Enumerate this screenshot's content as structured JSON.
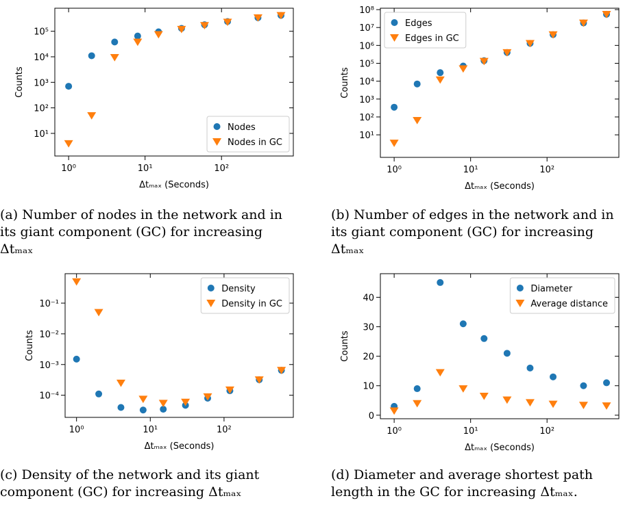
{
  "chart_data": [
    {
      "type": "scatter",
      "ylabel": "Counts",
      "xlabel": "Δtₘₐₓ (Seconds)",
      "xscale": "log",
      "yscale": "log",
      "x": [
        1,
        2,
        4,
        8,
        15,
        30,
        60,
        120,
        300,
        600
      ],
      "series": [
        {
          "name": "Nodes",
          "color": "#1f77b4",
          "marker": "o",
          "values": [
            700,
            11000,
            38000,
            65000,
            95000,
            130000,
            180000,
            240000,
            340000,
            420000
          ]
        },
        {
          "name": "Nodes in GC",
          "color": "#ff7f0e",
          "marker": "v",
          "values": [
            4,
            50,
            9500,
            38000,
            75000,
            120000,
            170000,
            230000,
            340000,
            420000
          ]
        }
      ],
      "xlim": [
        0.66,
        870
      ],
      "xticks": [
        {
          "value": 1,
          "label": "10⁰"
        },
        {
          "value": 10,
          "label": "10¹"
        },
        {
          "value": 100,
          "label": "10²"
        }
      ],
      "ylim": [
        1.3,
        800000
      ],
      "yticks": [
        {
          "value": 10,
          "label": "10¹"
        },
        {
          "value": 100,
          "label": "10²"
        },
        {
          "value": 1000,
          "label": "10³"
        },
        {
          "value": 10000,
          "label": "10⁴"
        },
        {
          "value": 100000,
          "label": "10⁵"
        }
      ],
      "legend": "lower right",
      "caption": [
        "(a) Number of nodes in the network and in",
        "its giant component (GC) for increasing",
        "Δtₘₐₓ"
      ]
    },
    {
      "type": "scatter",
      "ylabel": "Counts",
      "xlabel": "Δtₘₐₓ (Seconds)",
      "xscale": "log",
      "yscale": "log",
      "x": [
        1,
        2,
        4,
        8,
        15,
        30,
        60,
        120,
        300,
        600
      ],
      "series": [
        {
          "name": "Edges",
          "color": "#1f77b4",
          "marker": "o",
          "values": [
            350,
            7000,
            30000,
            70000,
            140000,
            400000,
            1300000,
            4000000,
            18000000,
            55000000
          ]
        },
        {
          "name": "Edges in GC",
          "color": "#ff7f0e",
          "marker": "v",
          "values": [
            3.5,
            65,
            12000,
            50000,
            130000,
            400000,
            1300000,
            4000000,
            18000000,
            55000000
          ]
        }
      ],
      "xlim": [
        0.66,
        870
      ],
      "xticks": [
        {
          "value": 1,
          "label": "10⁰"
        },
        {
          "value": 10,
          "label": "10¹"
        },
        {
          "value": 100,
          "label": "10²"
        }
      ],
      "ylim": [
        0.55,
        120000000
      ],
      "yticks": [
        {
          "value": 10,
          "label": "10¹"
        },
        {
          "value": 100,
          "label": "10²"
        },
        {
          "value": 1000,
          "label": "10³"
        },
        {
          "value": 10000,
          "label": "10⁴"
        },
        {
          "value": 100000,
          "label": "10⁵"
        },
        {
          "value": 1000000,
          "label": "10⁶"
        },
        {
          "value": 10000000,
          "label": "10⁷"
        },
        {
          "value": 100000000,
          "label": "10⁸"
        }
      ],
      "legend": "upper left",
      "caption": [
        "(b) Number of edges in the network and in",
        "its giant component (GC) for increasing",
        "Δtₘₐₓ"
      ]
    },
    {
      "type": "scatter",
      "ylabel": "Counts",
      "xlabel": "Δtₘₐₓ (Seconds)",
      "xscale": "log",
      "yscale": "log",
      "x": [
        1,
        2,
        4,
        8,
        15,
        30,
        60,
        120,
        300,
        600
      ],
      "series": [
        {
          "name": "Density",
          "color": "#1f77b4",
          "marker": "o",
          "values": [
            0.0015,
            0.00011,
            4e-05,
            3.3e-05,
            3.5e-05,
            4.7e-05,
            8e-05,
            0.00014,
            0.00032,
            0.00065
          ]
        },
        {
          "name": "Density in GC",
          "color": "#ff7f0e",
          "marker": "v",
          "values": [
            0.5,
            0.05,
            0.00025,
            7.5e-05,
            5.5e-05,
            6e-05,
            9e-05,
            0.00015,
            0.00032,
            0.00065
          ]
        }
      ],
      "xlim": [
        0.7,
        870
      ],
      "xticks": [
        {
          "value": 1,
          "label": "10⁰"
        },
        {
          "value": 10,
          "label": "10¹"
        },
        {
          "value": 100,
          "label": "10²"
        }
      ],
      "ylim": [
        1.9e-05,
        0.91
      ],
      "yticks": [
        {
          "value": 0.0001,
          "label": "10⁻⁴"
        },
        {
          "value": 0.001,
          "label": "10⁻³"
        },
        {
          "value": 0.01,
          "label": "10⁻²"
        },
        {
          "value": 0.1,
          "label": "10⁻¹"
        }
      ],
      "legend": "upper right",
      "caption": [
        "(c) Density of the network and its giant",
        "component (GC) for increasing Δtₘₐₓ"
      ]
    },
    {
      "type": "scatter",
      "ylabel": "Counts",
      "xlabel": "Δtₘₐₓ (Seconds)",
      "xscale": "log",
      "yscale": "linear",
      "x": [
        1,
        2,
        4,
        8,
        15,
        30,
        60,
        120,
        300,
        600
      ],
      "series": [
        {
          "name": "Diameter",
          "color": "#1f77b4",
          "marker": "o",
          "values": [
            3,
            9,
            45,
            31,
            26,
            21,
            16,
            13,
            10,
            11
          ]
        },
        {
          "name": "Average distance",
          "color": "#ff7f0e",
          "marker": "v",
          "values": [
            1.5,
            4,
            14.5,
            9,
            6.5,
            5.2,
            4.3,
            3.8,
            3.4,
            3.2
          ]
        }
      ],
      "xlim": [
        0.66,
        870
      ],
      "xticks": [
        {
          "value": 1,
          "label": "10⁰"
        },
        {
          "value": 10,
          "label": "10¹"
        },
        {
          "value": 100,
          "label": "10²"
        }
      ],
      "ylim": [
        -1.2,
        48
      ],
      "yticks": [
        0,
        10,
        20,
        30,
        40
      ],
      "legend": "upper right",
      "caption": [
        "(d) Diameter and average shortest path",
        "length in the GC for increasing Δtₘₐₓ."
      ]
    }
  ]
}
